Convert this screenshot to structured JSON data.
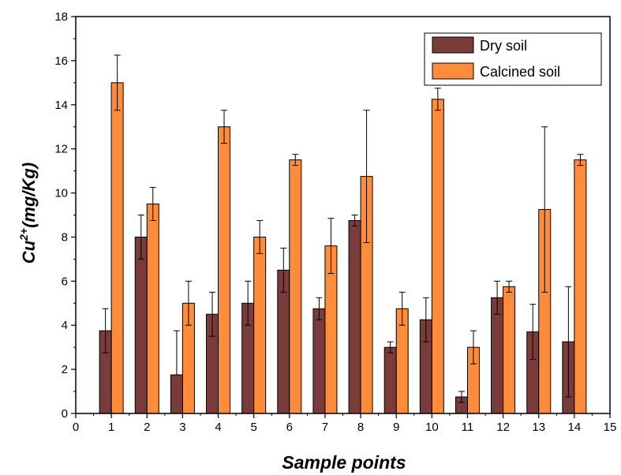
{
  "chart_data": {
    "type": "bar",
    "title": "",
    "xlabel": "Sample points",
    "ylabel_main": "Cu",
    "ylabel_sup": "2+",
    "ylabel_unit": "(mg/Kg)",
    "xlim": [
      0,
      15
    ],
    "ylim": [
      0,
      18
    ],
    "x_ticks": [
      "0",
      "1",
      "2",
      "3",
      "4",
      "5",
      "6",
      "7",
      "8",
      "9",
      "10",
      "11",
      "12",
      "13",
      "14",
      "15"
    ],
    "y_ticks": [
      "0",
      "2",
      "4",
      "6",
      "8",
      "10",
      "12",
      "14",
      "16",
      "18"
    ],
    "categories": [
      1,
      2,
      3,
      4,
      5,
      6,
      7,
      8,
      9,
      10,
      11,
      12,
      13,
      14
    ],
    "legend_position": "top-right",
    "grid": false,
    "series": [
      {
        "name": "Dry soil",
        "color": "#7a3b3b",
        "values": [
          3.75,
          8.0,
          1.75,
          4.5,
          5.0,
          6.5,
          4.75,
          8.75,
          3.0,
          4.25,
          0.75,
          5.25,
          3.7,
          3.25
        ],
        "err_upper": [
          1.0,
          1.0,
          2.0,
          1.0,
          1.0,
          1.0,
          0.5,
          0.25,
          0.25,
          1.0,
          0.25,
          0.75,
          1.25,
          2.5
        ],
        "err_lower": [
          1.0,
          1.0,
          0.0,
          1.0,
          1.0,
          1.0,
          0.5,
          0.25,
          0.25,
          1.0,
          0.25,
          0.75,
          1.25,
          2.5
        ]
      },
      {
        "name": "Calcined soil",
        "color": "#ff8c3a",
        "values": [
          15.0,
          9.5,
          5.0,
          13.0,
          8.0,
          11.5,
          7.6,
          10.75,
          4.75,
          14.25,
          3.0,
          5.75,
          9.25,
          11.5
        ],
        "err_upper": [
          1.25,
          0.75,
          1.0,
          0.75,
          0.75,
          0.25,
          1.25,
          3.0,
          0.75,
          0.5,
          0.75,
          0.25,
          3.75,
          0.25
        ],
        "err_lower": [
          1.25,
          0.75,
          1.0,
          0.75,
          0.75,
          0.25,
          1.25,
          3.0,
          0.75,
          0.5,
          0.75,
          0.25,
          3.75,
          0.25
        ]
      }
    ]
  }
}
